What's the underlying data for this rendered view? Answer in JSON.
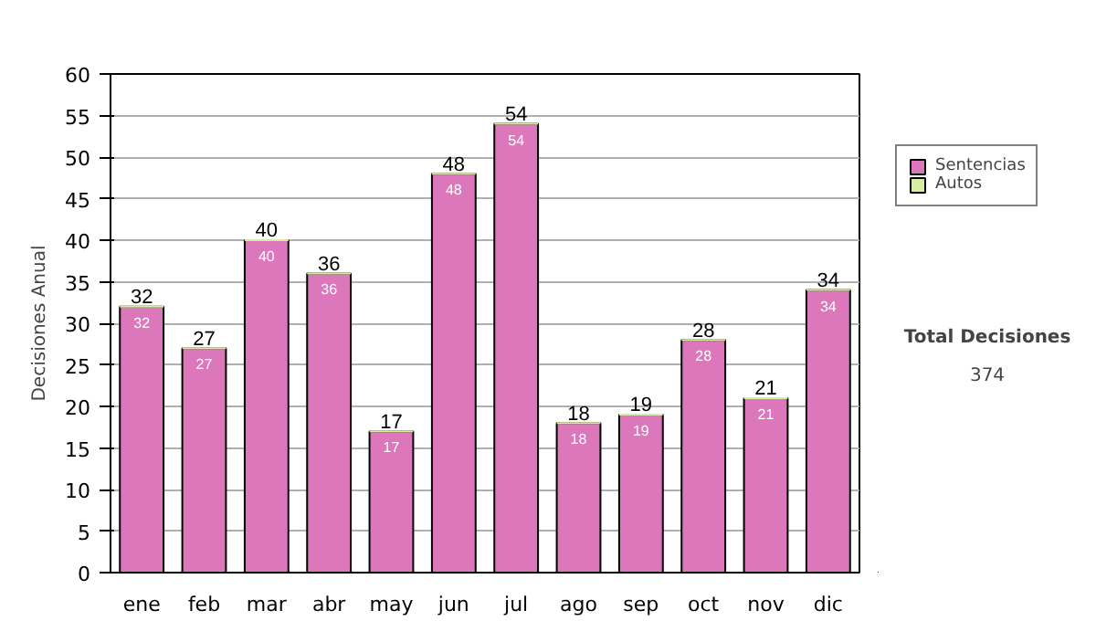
{
  "chart_data": {
    "type": "bar",
    "ylabel": "Decisiones Anual",
    "stacked": true,
    "categories": [
      "ene",
      "feb",
      "mar",
      "abr",
      "may",
      "jun",
      "jul",
      "ago",
      "sep",
      "oct",
      "nov",
      "dic"
    ],
    "series": [
      {
        "name": "Sentencias",
        "color": "#dd77bb",
        "values": [
          32,
          27,
          40,
          36,
          17,
          48,
          54,
          18,
          19,
          28,
          21,
          34
        ],
        "value_labels": [
          "32",
          "27",
          "40",
          "36",
          "17",
          "48",
          "54",
          "18",
          "19",
          "28",
          "21",
          "34"
        ]
      },
      {
        "name": "Autos",
        "color": "#d7eea0",
        "values": [
          0,
          0,
          0,
          0,
          0,
          0,
          0,
          0,
          0,
          0,
          0,
          0
        ]
      }
    ],
    "totals": [
      "32",
      "27",
      "40",
      "36",
      "17",
      "48",
      "54",
      "18",
      "19",
      "28",
      "21",
      "34"
    ],
    "ylim": [
      0,
      60
    ],
    "yticks": [
      0,
      5,
      10,
      15,
      20,
      25,
      30,
      35,
      40,
      45,
      50,
      55,
      60
    ],
    "grid": "y",
    "legend": "right",
    "annotations": [
      "Total Decisiones",
      "374"
    ]
  }
}
